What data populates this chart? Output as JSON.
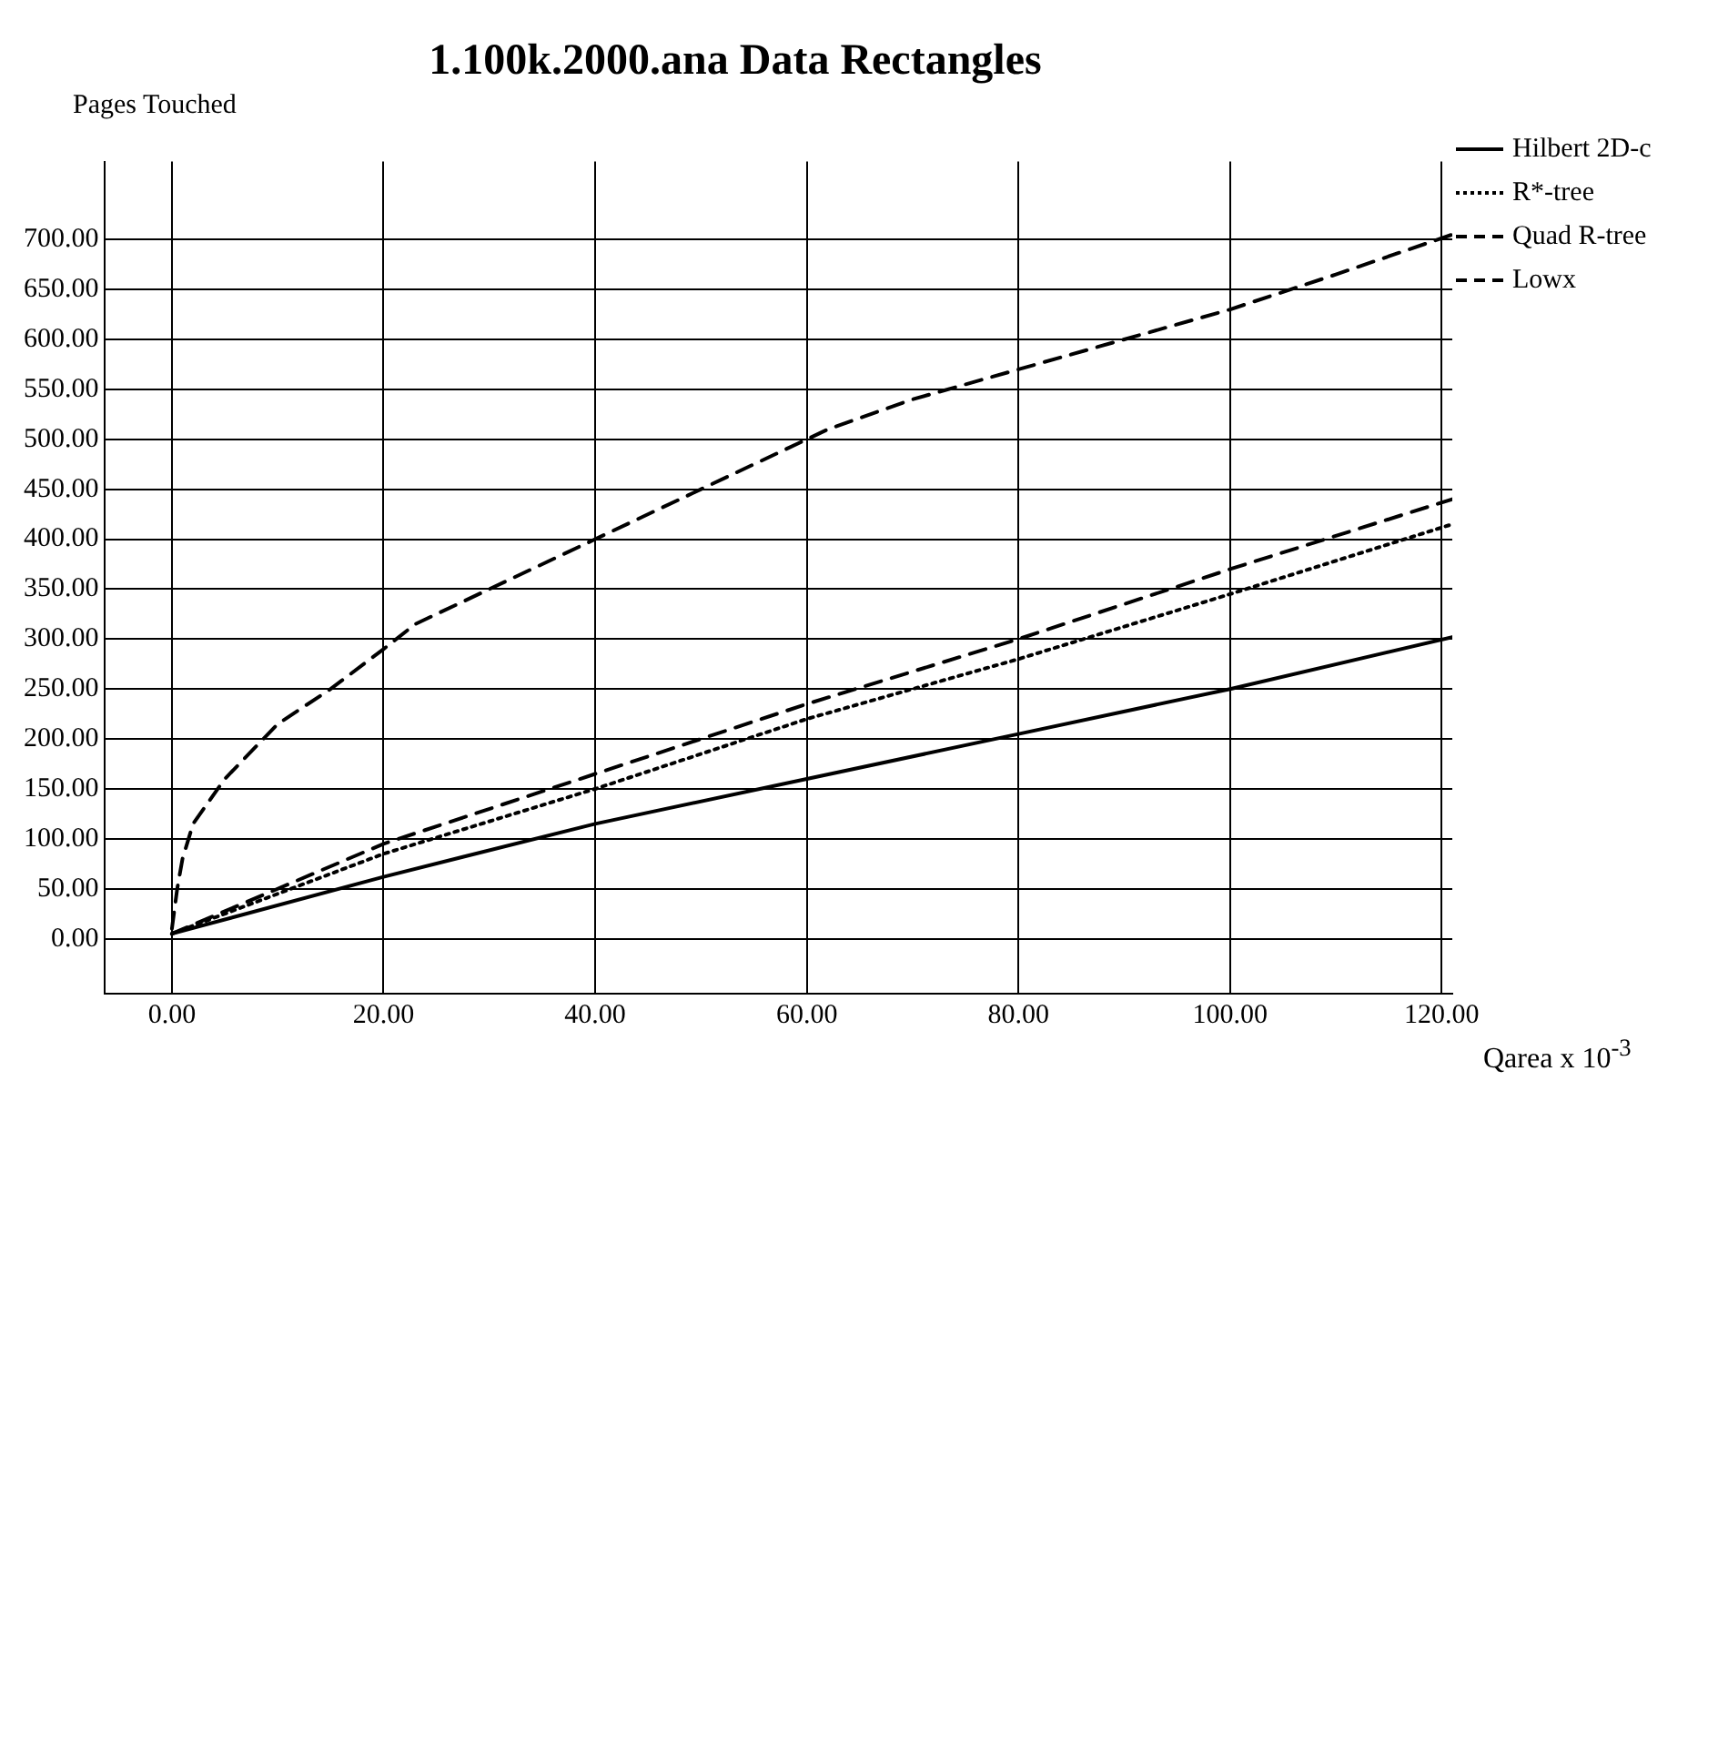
{
  "chart_data": {
    "type": "line",
    "title": "1.100k.2000.ana Data Rectangles",
    "xlabel": "Qarea x 10$^{-3}$",
    "ylabel": "Pages Touched",
    "xlim": [
      -6.4,
      121
    ],
    "ylim": [
      -55,
      778
    ],
    "xticks": [
      {
        "value": 0,
        "label": "0.00"
      },
      {
        "value": 20,
        "label": "20.00"
      },
      {
        "value": 40,
        "label": "40.00"
      },
      {
        "value": 60,
        "label": "60.00"
      },
      {
        "value": 80,
        "label": "80.00"
      },
      {
        "value": 100,
        "label": "100.00"
      },
      {
        "value": 120,
        "label": "120.00"
      }
    ],
    "yticks": [
      {
        "value": 0,
        "label": "0.00"
      },
      {
        "value": 50,
        "label": "50.00"
      },
      {
        "value": 100,
        "label": "100.00"
      },
      {
        "value": 150,
        "label": "150.00"
      },
      {
        "value": 200,
        "label": "200.00"
      },
      {
        "value": 250,
        "label": "250.00"
      },
      {
        "value": 300,
        "label": "300.00"
      },
      {
        "value": 350,
        "label": "350.00"
      },
      {
        "value": 400,
        "label": "400.00"
      },
      {
        "value": 450,
        "label": "450.00"
      },
      {
        "value": 500,
        "label": "500.00"
      },
      {
        "value": 550,
        "label": "550.00"
      },
      {
        "value": 600,
        "label": "600.00"
      },
      {
        "value": 650,
        "label": "650.00"
      },
      {
        "value": 700,
        "label": "700.00"
      }
    ],
    "grid": true,
    "legend": "top right",
    "marker": "none",
    "series": [
      {
        "name": "Hilbert 2D-c",
        "color": "#000000",
        "line_style": "solid",
        "x": [
          0,
          20,
          40,
          60,
          80,
          100,
          121
        ],
        "values": [
          5,
          62,
          115,
          160,
          205,
          250,
          302
        ]
      },
      {
        "name": "R*-tree",
        "color": "#000000",
        "line_style": "dotted",
        "x": [
          0,
          20,
          40,
          60,
          80,
          100,
          121
        ],
        "values": [
          5,
          85,
          150,
          220,
          280,
          345,
          415
        ]
      },
      {
        "name": "Quad R-tree",
        "color": "#000000",
        "line_style": "dashed",
        "x": [
          0,
          20,
          40,
          60,
          80,
          100,
          121
        ],
        "values": [
          5,
          95,
          165,
          235,
          300,
          370,
          440
        ]
      },
      {
        "name": "Lowx",
        "color": "#000000",
        "line_style": "dashed",
        "x": [
          0,
          0.5,
          1,
          2,
          5,
          10,
          15,
          20,
          23,
          30,
          40,
          50,
          60,
          62,
          70,
          80,
          90,
          100,
          110,
          121
        ],
        "values": [
          10,
          50,
          80,
          115,
          160,
          215,
          250,
          290,
          315,
          350,
          400,
          450,
          500,
          510,
          540,
          570,
          600,
          630,
          665,
          705
        ]
      }
    ]
  }
}
